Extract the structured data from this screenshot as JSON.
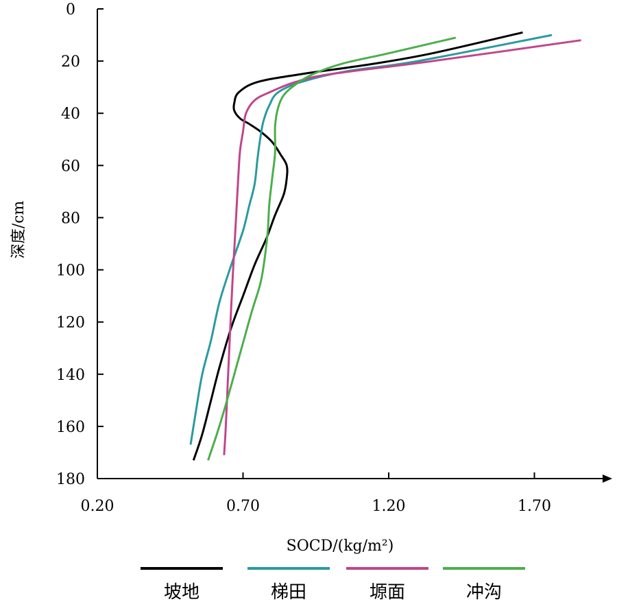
{
  "chart_data": {
    "type": "line",
    "xlabel": "SOCD/(kg/m²)",
    "ylabel": "深度/cm",
    "xlim": [
      0.2,
      2.0
    ],
    "ylim": [
      0,
      180
    ],
    "y_inverted": true,
    "x_ticks": [
      "0.20",
      "0.70",
      "1.20",
      "1.70"
    ],
    "x_tick_values": [
      0.2,
      0.7,
      1.2,
      1.7
    ],
    "y_ticks": [
      "0",
      "20",
      "40",
      "60",
      "80",
      "100",
      "120",
      "140",
      "160",
      "180"
    ],
    "y_tick_values": [
      0,
      20,
      40,
      60,
      80,
      100,
      120,
      140,
      160,
      180
    ],
    "grid": false,
    "legend_position": "bottom",
    "series": [
      {
        "name": "坡地",
        "color": "#000000",
        "points": [
          [
            1.66,
            9
          ],
          [
            1.35,
            17
          ],
          [
            1.15,
            21
          ],
          [
            0.9,
            25
          ],
          [
            0.75,
            28
          ],
          [
            0.685,
            32
          ],
          [
            0.67,
            36
          ],
          [
            0.67,
            39
          ],
          [
            0.69,
            42
          ],
          [
            0.72,
            44
          ],
          [
            0.76,
            47
          ],
          [
            0.8,
            51
          ],
          [
            0.83,
            56
          ],
          [
            0.85,
            60
          ],
          [
            0.85,
            65
          ],
          [
            0.84,
            71
          ],
          [
            0.81,
            79
          ],
          [
            0.78,
            88
          ],
          [
            0.74,
            98
          ],
          [
            0.7,
            110
          ],
          [
            0.66,
            122
          ],
          [
            0.62,
            137
          ],
          [
            0.59,
            150
          ],
          [
            0.56,
            163
          ],
          [
            0.53,
            173
          ]
        ]
      },
      {
        "name": "梯田",
        "color": "#2a9aa0",
        "points": [
          [
            1.76,
            10
          ],
          [
            1.3,
            20
          ],
          [
            1.05,
            24
          ],
          [
            0.9,
            28
          ],
          [
            0.82,
            32
          ],
          [
            0.79,
            37
          ],
          [
            0.77,
            43
          ],
          [
            0.76,
            49
          ],
          [
            0.75,
            57
          ],
          [
            0.74,
            67
          ],
          [
            0.72,
            76
          ],
          [
            0.7,
            85
          ],
          [
            0.66,
            98
          ],
          [
            0.62,
            112
          ],
          [
            0.59,
            127
          ],
          [
            0.56,
            140
          ],
          [
            0.54,
            153
          ],
          [
            0.52,
            167
          ]
        ]
      },
      {
        "name": "塬面",
        "color": "#c0468a",
        "points": [
          [
            1.86,
            12
          ],
          [
            1.35,
            20
          ],
          [
            1.0,
            25
          ],
          [
            0.88,
            28
          ],
          [
            0.79,
            32
          ],
          [
            0.74,
            35
          ],
          [
            0.71,
            40
          ],
          [
            0.7,
            47
          ],
          [
            0.69,
            54
          ],
          [
            0.685,
            62
          ],
          [
            0.68,
            72
          ],
          [
            0.675,
            82
          ],
          [
            0.67,
            92
          ],
          [
            0.665,
            102
          ],
          [
            0.66,
            113
          ],
          [
            0.655,
            125
          ],
          [
            0.65,
            137
          ],
          [
            0.645,
            150
          ],
          [
            0.64,
            162
          ],
          [
            0.635,
            171
          ]
        ]
      },
      {
        "name": "冲沟",
        "color": "#4cae4c",
        "points": [
          [
            1.43,
            11
          ],
          [
            1.2,
            17
          ],
          [
            1.04,
            21
          ],
          [
            0.94,
            25
          ],
          [
            0.88,
            29
          ],
          [
            0.84,
            33
          ],
          [
            0.82,
            38
          ],
          [
            0.81,
            45
          ],
          [
            0.81,
            55
          ],
          [
            0.8,
            65
          ],
          [
            0.79,
            75
          ],
          [
            0.785,
            85
          ],
          [
            0.775,
            95
          ],
          [
            0.76,
            105
          ],
          [
            0.73,
            116
          ],
          [
            0.7,
            128
          ],
          [
            0.67,
            140
          ],
          [
            0.64,
            152
          ],
          [
            0.61,
            163
          ],
          [
            0.58,
            173
          ]
        ]
      }
    ]
  }
}
